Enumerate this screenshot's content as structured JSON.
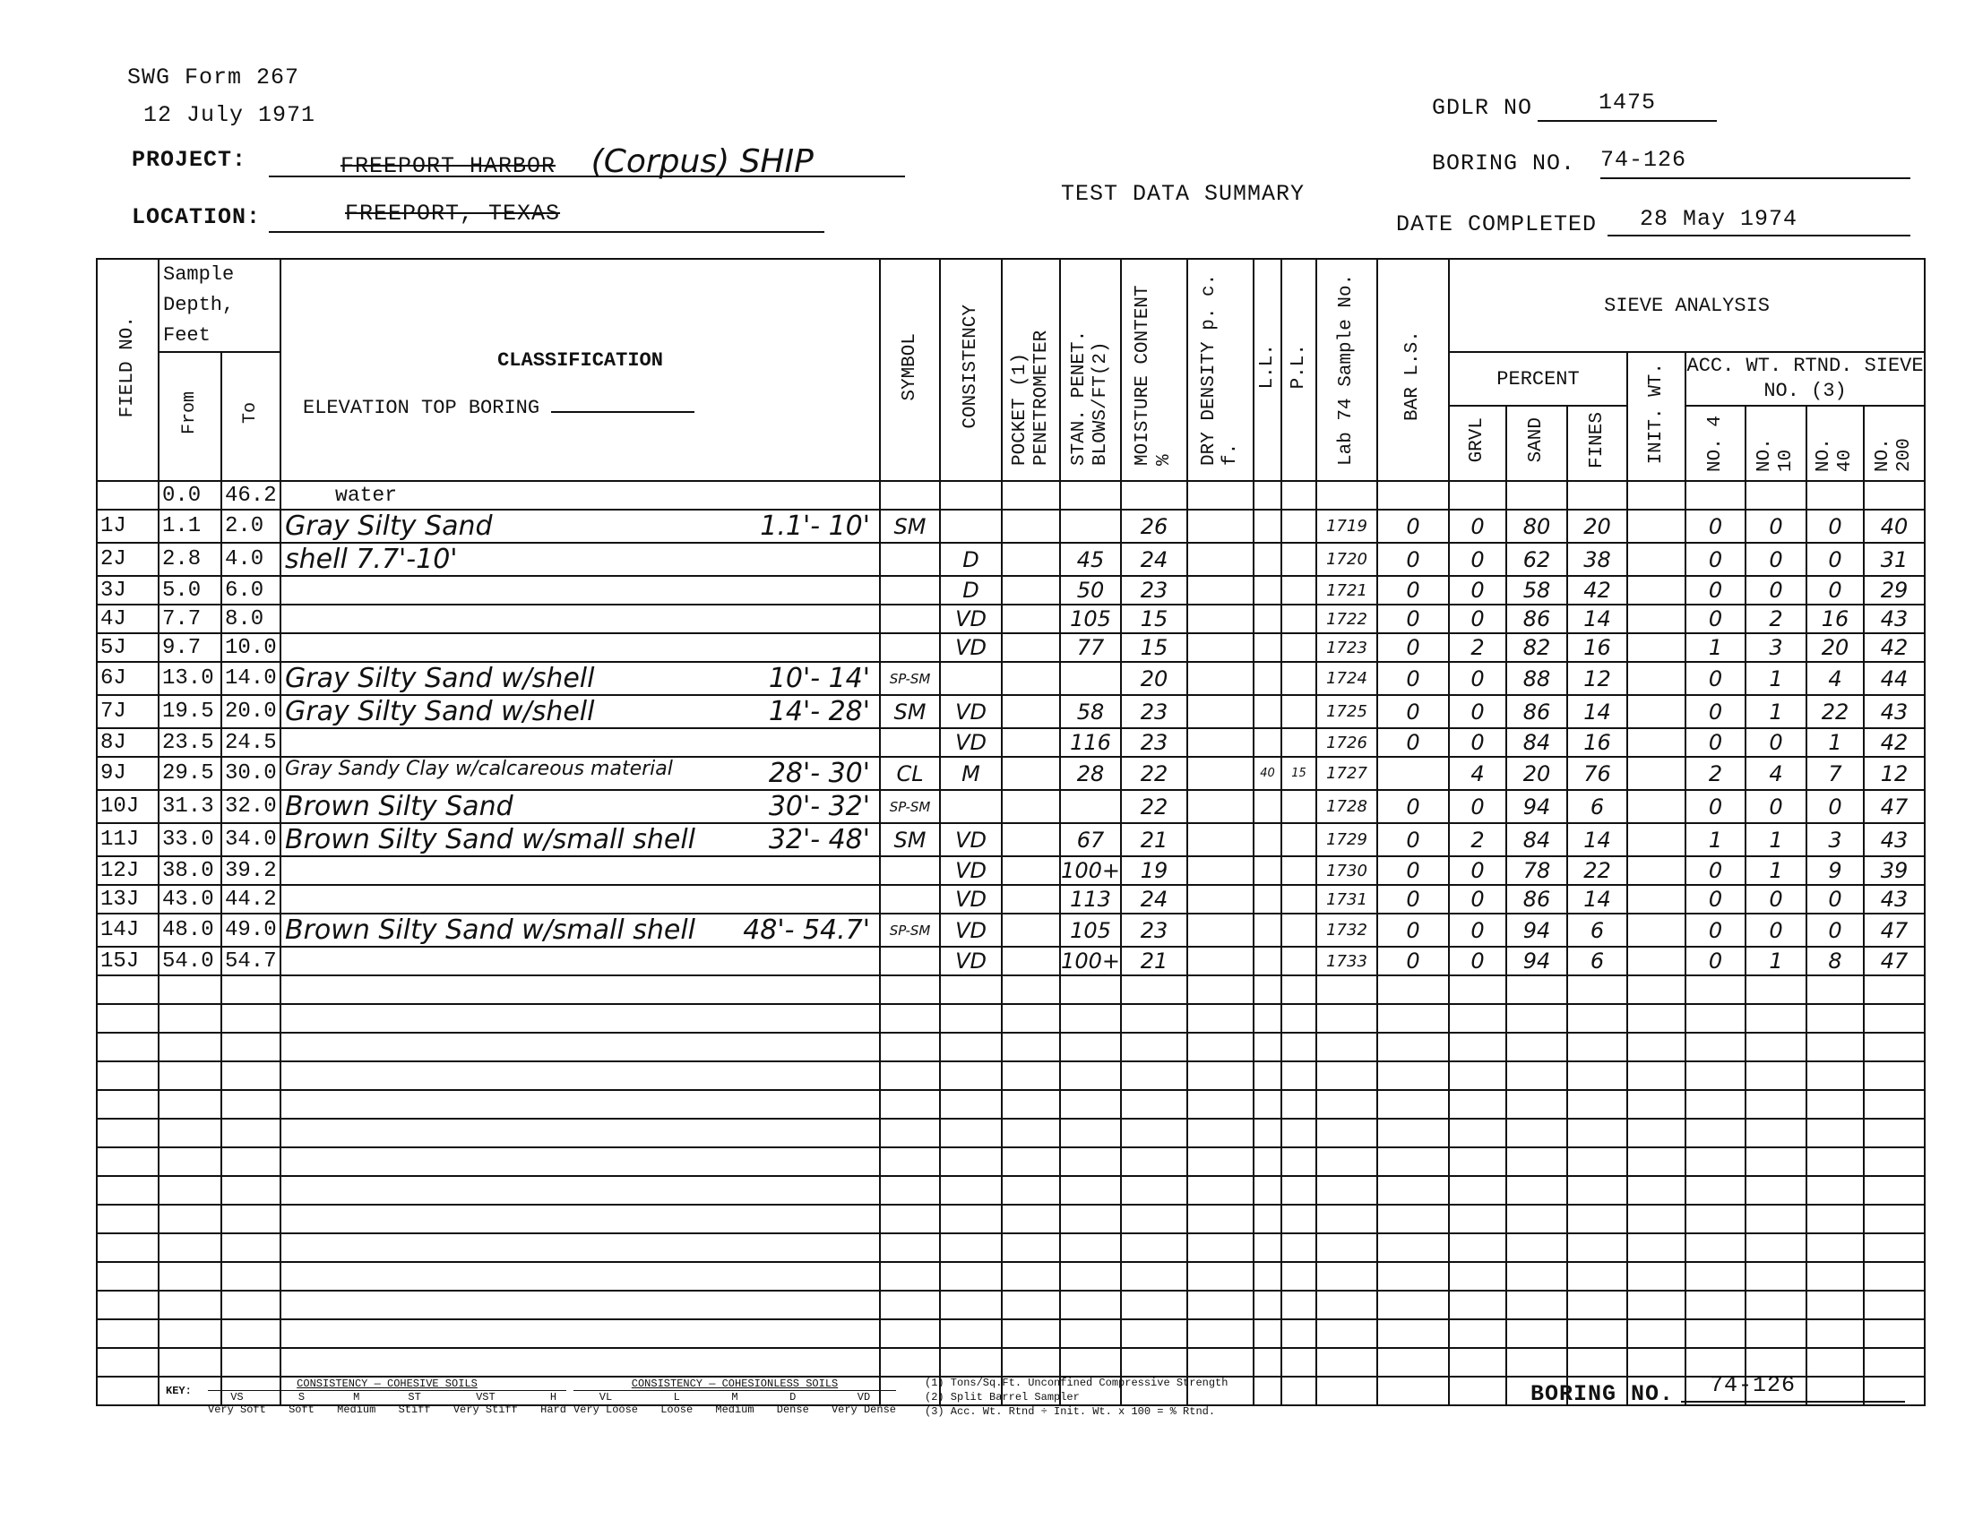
{
  "form": {
    "id": "SWG Form 267",
    "date": "12 July 1971"
  },
  "project": {
    "label": "PROJECT:",
    "struck_value": "FREEPORT HARBOR",
    "handwritten_value": "(Corpus) SHIP"
  },
  "location": {
    "label": "LOCATION:",
    "struck_value": "FREEPORT, TEXAS"
  },
  "title": "TEST DATA SUMMARY",
  "gdlr": {
    "label": "GDLR NO",
    "value": "1475"
  },
  "boring": {
    "label": "BORING NO.",
    "value": "74-126"
  },
  "date_completed": {
    "label": "DATE COMPLETED",
    "value": "28 May 1974"
  },
  "headers": {
    "field_no": "FIELD NO.",
    "sample_depth": "Sample Depth, Feet",
    "from": "From",
    "to": "To",
    "classification": "CLASSIFICATION",
    "elevation": "ELEVATION TOP BORING",
    "symbol": "SYMBOL",
    "consistency": "CONSISTENCY",
    "pocket": "POCKET (1) PENETROMETER",
    "stan": "STAN. PENET. BLOWS/FT(2)",
    "moisture": "MOISTURE CONTENT %",
    "dry_density": "DRY DENSITY p. c. f.",
    "ll": "L.L.",
    "pl": "P.L.",
    "lab": "Lab 74 Sample No.",
    "bar": "BAR L.S.",
    "sieve": "SIEVE ANALYSIS",
    "percent": "PERCENT",
    "grvl": "GRVL",
    "sand": "SAND",
    "fines": "FINES",
    "init_wt": "INIT. WT.",
    "acc": "ACC. WT. RTND. SIEVE NO. (3)",
    "no4": "NO. 4",
    "no10": "NO. 10",
    "no40": "NO. 40",
    "no200": "NO. 200"
  },
  "rows": [
    {
      "field": "",
      "from": "0.0",
      "to": "46.2",
      "desc": "water",
      "range": "",
      "symbol": "",
      "cons": "",
      "blows": "",
      "moist": "",
      "ll": "",
      "pl": "",
      "lab": "",
      "bar": "",
      "grvl": "",
      "sand": "",
      "fines": "",
      "no4": "",
      "no10": "",
      "no40": "",
      "no200": ""
    },
    {
      "field": "1J",
      "from": "1.1",
      "to": "2.0",
      "desc": "Gray Silty Sand",
      "range": "1.1'- 10'",
      "symbol": "SM",
      "cons": "",
      "blows": "",
      "moist": "26",
      "ll": "",
      "pl": "",
      "lab": "1719",
      "bar": "0",
      "grvl": "0",
      "sand": "80",
      "fines": "20",
      "no4": "0",
      "no10": "0",
      "no40": "0",
      "no200": "40"
    },
    {
      "field": "2J",
      "from": "2.8",
      "to": "4.0",
      "desc": "shell 7.7'-10'",
      "range": "",
      "symbol": "",
      "cons": "D",
      "blows": "45",
      "moist": "24",
      "ll": "",
      "pl": "",
      "lab": "1720",
      "bar": "0",
      "grvl": "0",
      "sand": "62",
      "fines": "38",
      "no4": "0",
      "no10": "0",
      "no40": "0",
      "no200": "31"
    },
    {
      "field": "3J",
      "from": "5.0",
      "to": "6.0",
      "desc": "",
      "range": "",
      "symbol": "",
      "cons": "D",
      "blows": "50",
      "moist": "23",
      "ll": "",
      "pl": "",
      "lab": "1721",
      "bar": "0",
      "grvl": "0",
      "sand": "58",
      "fines": "42",
      "no4": "0",
      "no10": "0",
      "no40": "0",
      "no200": "29"
    },
    {
      "field": "4J",
      "from": "7.7",
      "to": "8.0",
      "desc": "",
      "range": "",
      "symbol": "",
      "cons": "VD",
      "blows": "105",
      "moist": "15",
      "ll": "",
      "pl": "",
      "lab": "1722",
      "bar": "0",
      "grvl": "0",
      "sand": "86",
      "fines": "14",
      "no4": "0",
      "no10": "2",
      "no40": "16",
      "no200": "43"
    },
    {
      "field": "5J",
      "from": "9.7",
      "to": "10.0",
      "desc": "",
      "range": "",
      "symbol": "",
      "cons": "VD",
      "blows": "77",
      "moist": "15",
      "ll": "",
      "pl": "",
      "lab": "1723",
      "bar": "0",
      "grvl": "2",
      "sand": "82",
      "fines": "16",
      "no4": "1",
      "no10": "3",
      "no40": "20",
      "no200": "42"
    },
    {
      "field": "6J",
      "from": "13.0",
      "to": "14.0",
      "desc": "Gray Silty Sand w/shell",
      "range": "10'- 14'",
      "symbol": "SP-SM",
      "cons": "",
      "blows": "",
      "moist": "20",
      "ll": "",
      "pl": "",
      "lab": "1724",
      "bar": "0",
      "grvl": "0",
      "sand": "88",
      "fines": "12",
      "no4": "0",
      "no10": "1",
      "no40": "4",
      "no200": "44"
    },
    {
      "field": "7J",
      "from": "19.5",
      "to": "20.0",
      "desc": "Gray Silty Sand w/shell",
      "range": "14'- 28'",
      "symbol": "SM",
      "cons": "VD",
      "blows": "58",
      "moist": "23",
      "ll": "",
      "pl": "",
      "lab": "1725",
      "bar": "0",
      "grvl": "0",
      "sand": "86",
      "fines": "14",
      "no4": "0",
      "no10": "1",
      "no40": "22",
      "no200": "43"
    },
    {
      "field": "8J",
      "from": "23.5",
      "to": "24.5",
      "desc": "",
      "range": "",
      "symbol": "",
      "cons": "VD",
      "blows": "116",
      "moist": "23",
      "ll": "",
      "pl": "",
      "lab": "1726",
      "bar": "0",
      "grvl": "0",
      "sand": "84",
      "fines": "16",
      "no4": "0",
      "no10": "0",
      "no40": "1",
      "no200": "42"
    },
    {
      "field": "9J",
      "from": "29.5",
      "to": "30.0",
      "desc": "Gray Sandy Clay w/calcareous material",
      "range": "28'- 30'",
      "symbol": "CL",
      "cons": "M",
      "blows": "28",
      "moist": "22",
      "ll": "40",
      "pl": "15",
      "lab": "1727",
      "bar": "",
      "grvl": "4",
      "sand": "20",
      "fines": "76",
      "no4": "2",
      "no10": "4",
      "no40": "7",
      "no200": "12"
    },
    {
      "field": "10J",
      "from": "31.3",
      "to": "32.0",
      "desc": "Brown Silty Sand",
      "range": "30'- 32'",
      "symbol": "SP-SM",
      "cons": "",
      "blows": "",
      "moist": "22",
      "ll": "",
      "pl": "",
      "lab": "1728",
      "bar": "0",
      "grvl": "0",
      "sand": "94",
      "fines": "6",
      "no4": "0",
      "no10": "0",
      "no40": "0",
      "no200": "47"
    },
    {
      "field": "11J",
      "from": "33.0",
      "to": "34.0",
      "desc": "Brown Silty Sand w/small shell",
      "range": "32'- 48'",
      "symbol": "SM",
      "cons": "VD",
      "blows": "67",
      "moist": "21",
      "ll": "",
      "pl": "",
      "lab": "1729",
      "bar": "0",
      "grvl": "2",
      "sand": "84",
      "fines": "14",
      "no4": "1",
      "no10": "1",
      "no40": "3",
      "no200": "43"
    },
    {
      "field": "12J",
      "from": "38.0",
      "to": "39.2",
      "desc": "",
      "range": "",
      "symbol": "",
      "cons": "VD",
      "blows": "100+",
      "moist": "19",
      "ll": "",
      "pl": "",
      "lab": "1730",
      "bar": "0",
      "grvl": "0",
      "sand": "78",
      "fines": "22",
      "no4": "0",
      "no10": "1",
      "no40": "9",
      "no200": "39"
    },
    {
      "field": "13J",
      "from": "43.0",
      "to": "44.2",
      "desc": "",
      "range": "",
      "symbol": "",
      "cons": "VD",
      "blows": "113",
      "moist": "24",
      "ll": "",
      "pl": "",
      "lab": "1731",
      "bar": "0",
      "grvl": "0",
      "sand": "86",
      "fines": "14",
      "no4": "0",
      "no10": "0",
      "no40": "0",
      "no200": "43"
    },
    {
      "field": "14J",
      "from": "48.0",
      "to": "49.0",
      "desc": "Brown Silty Sand w/small shell",
      "range": "48'- 54.7'",
      "symbol": "SP-SM",
      "cons": "VD",
      "blows": "105",
      "moist": "23",
      "ll": "",
      "pl": "",
      "lab": "1732",
      "bar": "0",
      "grvl": "0",
      "sand": "94",
      "fines": "6",
      "no4": "0",
      "no10": "0",
      "no40": "0",
      "no200": "47"
    },
    {
      "field": "15J",
      "from": "54.0",
      "to": "54.7",
      "desc": "",
      "range": "",
      "symbol": "",
      "cons": "VD",
      "blows": "100+",
      "moist": "21",
      "ll": "",
      "pl": "",
      "lab": "1733",
      "bar": "0",
      "grvl": "0",
      "sand": "94",
      "fines": "6",
      "no4": "0",
      "no10": "1",
      "no40": "8",
      "no200": "47"
    }
  ],
  "key": {
    "label": "KEY:",
    "cohesive_title": "CONSISTENCY — COHESIVE SOILS",
    "cohesive": [
      [
        "VS",
        "Very Soft"
      ],
      [
        "S",
        "Soft"
      ],
      [
        "M",
        "Medium"
      ],
      [
        "ST",
        "Stiff"
      ],
      [
        "VST",
        "Very Stiff"
      ],
      [
        "H",
        "Hard"
      ]
    ],
    "cohesionless_title": "CONSISTENCY — COHESIONLESS SOILS",
    "cohesionless": [
      [
        "VL",
        "Very Loose"
      ],
      [
        "L",
        "Loose"
      ],
      [
        "M",
        "Medium"
      ],
      [
        "D",
        "Dense"
      ],
      [
        "VD",
        "Very Dense"
      ]
    ],
    "notes": [
      "(1) Tons/Sq.Ft. Unconfined Compressive Strength",
      "(2) Split Barrel Sampler",
      "(3) Acc. Wt. Rtnd ÷ Init. Wt. x 100 = % Rtnd."
    ]
  }
}
